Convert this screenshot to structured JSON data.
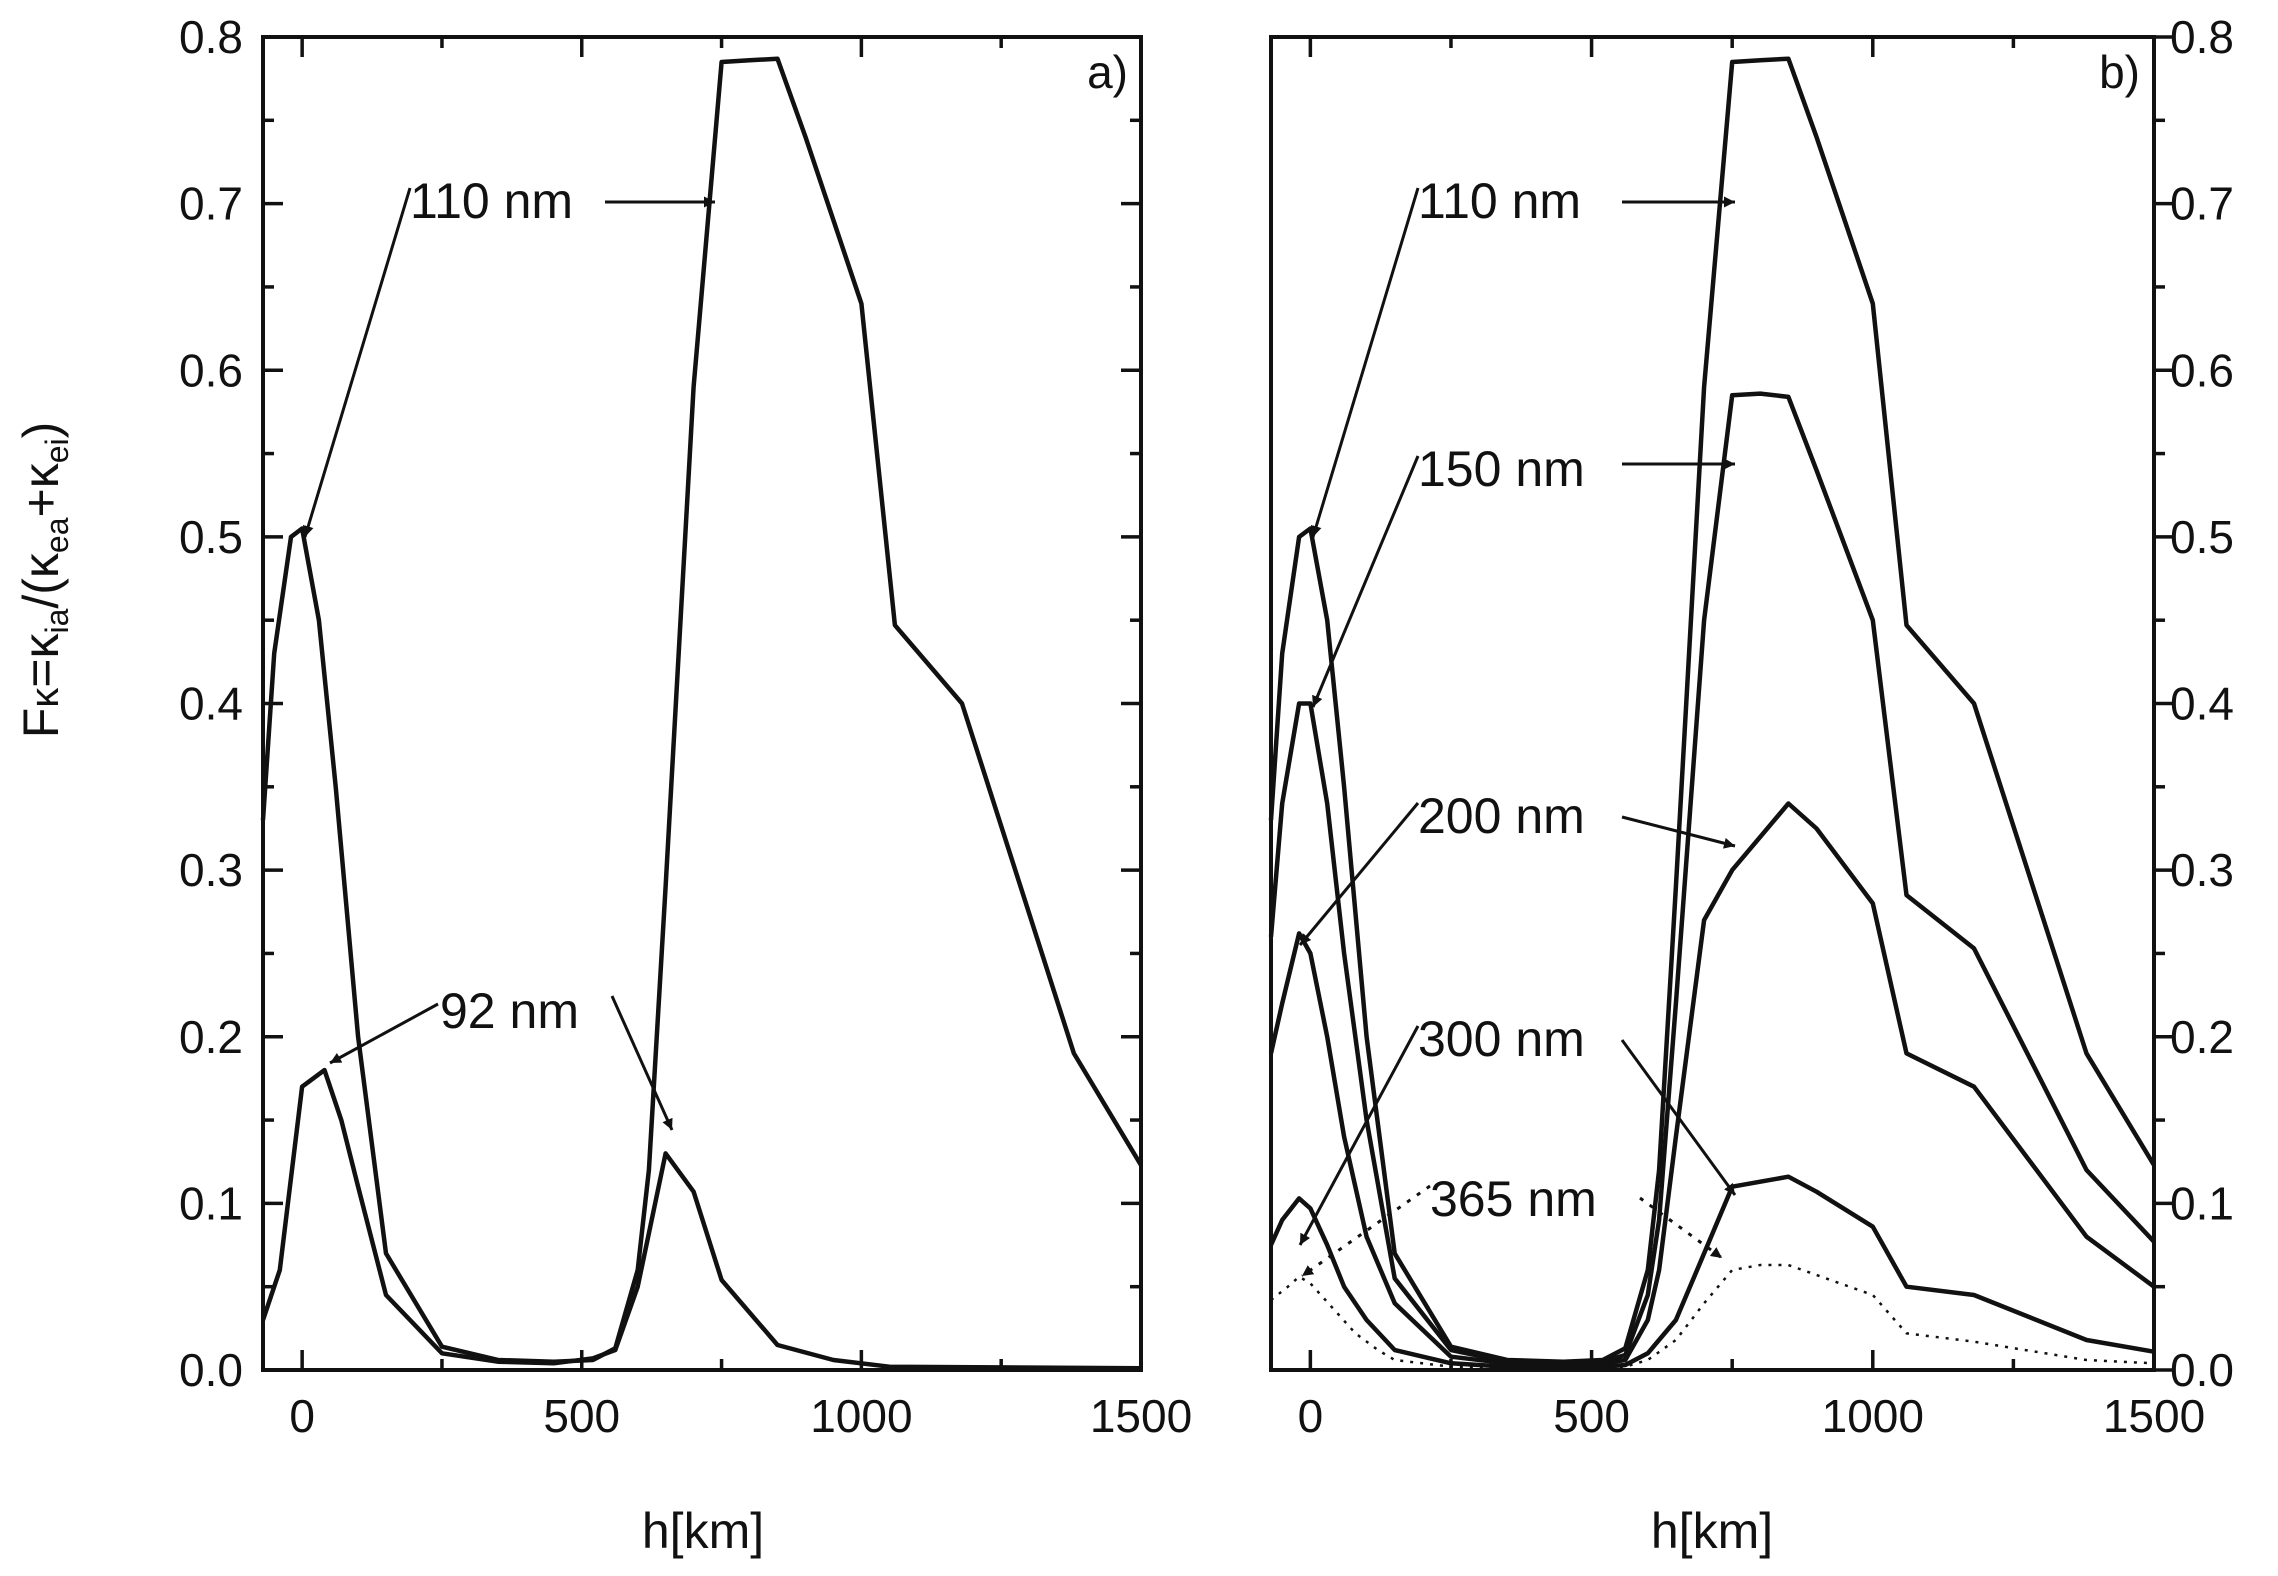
{
  "chart_data": [
    {
      "type": "line",
      "panel": "a)",
      "xlabel": "h[km]",
      "ylabel": "F_κ=κ_ia/(κ_ea+κ_ei)",
      "xlim": [
        -70,
        1500
      ],
      "ylim": [
        0,
        0.8
      ],
      "xticks": [
        0,
        500,
        1000,
        1500
      ],
      "yticks": [
        0.0,
        0.1,
        0.2,
        0.3,
        0.4,
        0.5,
        0.6,
        0.7,
        0.8
      ],
      "y_axis_side": "left",
      "series": [
        {
          "name": "110 nm",
          "x": [
            -70,
            -50,
            -20,
            0,
            30,
            60,
            100,
            150,
            250,
            350,
            450,
            520,
            560,
            600,
            620,
            650,
            700,
            750,
            800,
            850,
            900,
            1000,
            1060,
            1180,
            1380,
            1500
          ],
          "y": [
            0.33,
            0.43,
            0.5,
            0.505,
            0.45,
            0.35,
            0.2,
            0.07,
            0.014,
            0.006,
            0.005,
            0.006,
            0.013,
            0.06,
            0.12,
            0.29,
            0.59,
            0.785,
            0.786,
            0.787,
            0.74,
            0.64,
            0.447,
            0.4,
            0.19,
            0.123
          ]
        },
        {
          "name": "92 nm",
          "x": [
            -70,
            -40,
            0,
            40,
            70,
            100,
            150,
            250,
            350,
            450,
            520,
            560,
            600,
            650,
            700,
            750,
            850,
            950,
            1050,
            1500
          ],
          "y": [
            0.03,
            0.06,
            0.17,
            0.18,
            0.15,
            0.11,
            0.045,
            0.01,
            0.005,
            0.004,
            0.007,
            0.012,
            0.05,
            0.13,
            0.107,
            0.054,
            0.015,
            0.006,
            0.002,
            0.001
          ]
        }
      ],
      "annotations": [
        {
          "text": "110 nm",
          "x": 180,
          "y": 0.71
        },
        {
          "text": "92 nm",
          "x": 240,
          "y": 0.21
        }
      ]
    },
    {
      "type": "line",
      "panel": "b)",
      "xlabel": "h[km]",
      "xlim": [
        -70,
        1500
      ],
      "ylim": [
        0,
        0.8
      ],
      "xticks": [
        0,
        500,
        1000,
        1500
      ],
      "yticks": [
        0.0,
        0.1,
        0.2,
        0.3,
        0.4,
        0.5,
        0.6,
        0.7,
        0.8
      ],
      "y_axis_side": "right",
      "series": [
        {
          "name": "110 nm",
          "x": [
            -70,
            -50,
            -20,
            0,
            30,
            60,
            100,
            150,
            250,
            350,
            450,
            520,
            560,
            600,
            620,
            650,
            700,
            750,
            800,
            850,
            900,
            1000,
            1060,
            1180,
            1380,
            1500
          ],
          "y": [
            0.33,
            0.43,
            0.5,
            0.505,
            0.45,
            0.35,
            0.2,
            0.07,
            0.014,
            0.006,
            0.005,
            0.006,
            0.013,
            0.06,
            0.12,
            0.29,
            0.59,
            0.785,
            0.786,
            0.787,
            0.74,
            0.64,
            0.447,
            0.4,
            0.19,
            0.123
          ]
        },
        {
          "name": "150 nm",
          "x": [
            -70,
            -50,
            -20,
            0,
            30,
            60,
            100,
            150,
            250,
            350,
            450,
            520,
            560,
            600,
            620,
            650,
            700,
            750,
            800,
            850,
            900,
            1000,
            1060,
            1180,
            1380,
            1500
          ],
          "y": [
            0.26,
            0.34,
            0.4,
            0.4,
            0.34,
            0.25,
            0.15,
            0.055,
            0.012,
            0.005,
            0.004,
            0.005,
            0.009,
            0.045,
            0.09,
            0.22,
            0.45,
            0.585,
            0.586,
            0.584,
            0.54,
            0.45,
            0.285,
            0.253,
            0.12,
            0.077
          ]
        },
        {
          "name": "200 nm",
          "x": [
            -70,
            -50,
            -20,
            0,
            30,
            60,
            100,
            150,
            250,
            350,
            450,
            520,
            560,
            600,
            620,
            650,
            700,
            750,
            800,
            850,
            900,
            1000,
            1060,
            1180,
            1380,
            1500
          ],
          "y": [
            0.19,
            0.22,
            0.262,
            0.25,
            0.2,
            0.14,
            0.08,
            0.04,
            0.008,
            0.004,
            0.003,
            0.004,
            0.006,
            0.03,
            0.06,
            0.14,
            0.27,
            0.3,
            0.32,
            0.34,
            0.325,
            0.28,
            0.19,
            0.17,
            0.08,
            0.05
          ]
        },
        {
          "name": "300 nm",
          "x": [
            -70,
            -50,
            -20,
            0,
            30,
            60,
            100,
            150,
            250,
            350,
            450,
            520,
            560,
            600,
            650,
            700,
            750,
            800,
            850,
            900,
            1000,
            1060,
            1180,
            1380,
            1500
          ],
          "y": [
            0.075,
            0.09,
            0.103,
            0.097,
            0.075,
            0.05,
            0.03,
            0.012,
            0.004,
            0.002,
            0.002,
            0.002,
            0.003,
            0.01,
            0.03,
            0.07,
            0.11,
            0.113,
            0.116,
            0.107,
            0.086,
            0.05,
            0.045,
            0.018,
            0.011
          ]
        },
        {
          "name": "365 nm",
          "style": "dotted",
          "x": [
            -70,
            -40,
            -20,
            0,
            40,
            80,
            120,
            150,
            250,
            350,
            450,
            520,
            560,
            600,
            650,
            700,
            750,
            800,
            850,
            900,
            1000,
            1060,
            1180,
            1380,
            1500
          ],
          "y": [
            0.042,
            0.05,
            0.056,
            0.052,
            0.037,
            0.022,
            0.012,
            0.006,
            0.002,
            0.001,
            0.001,
            0.001,
            0.002,
            0.006,
            0.018,
            0.04,
            0.06,
            0.063,
            0.063,
            0.057,
            0.045,
            0.022,
            0.017,
            0.006,
            0.004
          ]
        }
      ],
      "annotations": [
        {
          "text": "110 nm",
          "x": 180,
          "y": 0.71
        },
        {
          "text": "150 nm",
          "x": 180,
          "y": 0.545
        },
        {
          "text": "200 nm",
          "x": 180,
          "y": 0.33
        },
        {
          "text": "300 nm",
          "x": 180,
          "y": 0.195
        },
        {
          "text": "365 nm",
          "x": 200,
          "y": 0.105
        }
      ]
    }
  ],
  "labels": {
    "ylabel_main": "F",
    "ylabel_kappa": "κ",
    "ylabel_eq": "=κ",
    "ylabel_sub_ia": "ia",
    "ylabel_mid": "/(κ",
    "ylabel_sub_ea": "ea",
    "ylabel_plus": "+κ",
    "ylabel_sub_ei": "ei",
    "ylabel_close": ")",
    "xlabel_a": "h[km]",
    "xlabel_b": "h[km]",
    "panel_a": "a)",
    "panel_b": "b)"
  }
}
